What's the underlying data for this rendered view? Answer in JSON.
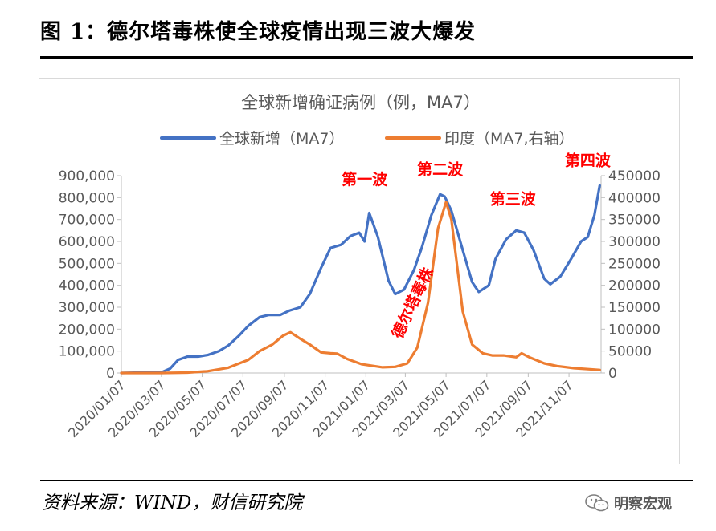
{
  "figure": {
    "title": "图 1：德尔塔毒株使全球疫情出现三波大爆发",
    "source": "资料来源：WIND，财信研究院",
    "watermark": "明察宏观"
  },
  "colors": {
    "left_series": "#4472C4",
    "right_series": "#ED7D31",
    "annotation": "#FF0000",
    "axis": "#595959"
  },
  "chart_data": {
    "type": "line",
    "title": "全球新增确证病例（例，MA7）",
    "x_tick_labels": [
      "2020/01/07",
      "2020/03/07",
      "2020/05/07",
      "2020/07/07",
      "2020/09/07",
      "2020/11/07",
      "2021/01/07",
      "2021/03/07",
      "2021/05/07",
      "2021/07/07",
      "2021/09/07",
      "2021/11/07"
    ],
    "y_left": {
      "min": 0,
      "max": 900000,
      "ticks": [
        "0",
        "100,000",
        "200,000",
        "300,000",
        "400,000",
        "500,000",
        "600,000",
        "700,000",
        "800,000",
        "900,000"
      ]
    },
    "y_right": {
      "min": 0,
      "max": 450000,
      "ticks": [
        "0",
        "50000",
        "100000",
        "150000",
        "200000",
        "250000",
        "300000",
        "350000",
        "400000",
        "450000"
      ]
    },
    "legend_position": "top",
    "grid": false,
    "series": [
      {
        "name": "全球新增（MA7）",
        "axis": "left",
        "color": "#4472C4",
        "points": [
          [
            "2020-01-07",
            0
          ],
          [
            "2020-02-01",
            2000
          ],
          [
            "2020-02-15",
            5000
          ],
          [
            "2020-03-07",
            3000
          ],
          [
            "2020-03-20",
            20000
          ],
          [
            "2020-04-01",
            60000
          ],
          [
            "2020-04-15",
            75000
          ],
          [
            "2020-05-01",
            75000
          ],
          [
            "2020-05-15",
            82000
          ],
          [
            "2020-06-01",
            100000
          ],
          [
            "2020-06-15",
            125000
          ],
          [
            "2020-07-01",
            170000
          ],
          [
            "2020-07-15",
            215000
          ],
          [
            "2020-08-01",
            255000
          ],
          [
            "2020-08-15",
            265000
          ],
          [
            "2020-09-01",
            265000
          ],
          [
            "2020-09-15",
            285000
          ],
          [
            "2020-10-01",
            300000
          ],
          [
            "2020-10-15",
            360000
          ],
          [
            "2020-11-01",
            480000
          ],
          [
            "2020-11-15",
            570000
          ],
          [
            "2020-12-01",
            585000
          ],
          [
            "2020-12-15",
            625000
          ],
          [
            "2020-12-28",
            640000
          ],
          [
            "2021-01-05",
            600000
          ],
          [
            "2021-01-12",
            730000
          ],
          [
            "2021-01-25",
            620000
          ],
          [
            "2021-02-10",
            420000
          ],
          [
            "2021-02-20",
            360000
          ],
          [
            "2021-03-05",
            380000
          ],
          [
            "2021-03-20",
            470000
          ],
          [
            "2021-04-01",
            575000
          ],
          [
            "2021-04-15",
            720000
          ],
          [
            "2021-04-28",
            815000
          ],
          [
            "2021-05-05",
            805000
          ],
          [
            "2021-05-15",
            740000
          ],
          [
            "2021-06-01",
            560000
          ],
          [
            "2021-06-15",
            415000
          ],
          [
            "2021-06-25",
            370000
          ],
          [
            "2021-07-10",
            400000
          ],
          [
            "2021-07-20",
            520000
          ],
          [
            "2021-08-05",
            610000
          ],
          [
            "2021-08-20",
            650000
          ],
          [
            "2021-09-01",
            640000
          ],
          [
            "2021-09-15",
            560000
          ],
          [
            "2021-10-01",
            430000
          ],
          [
            "2021-10-10",
            405000
          ],
          [
            "2021-10-25",
            440000
          ],
          [
            "2021-11-10",
            520000
          ],
          [
            "2021-11-25",
            600000
          ],
          [
            "2021-12-05",
            620000
          ],
          [
            "2021-12-15",
            720000
          ],
          [
            "2021-12-23",
            855000
          ]
        ]
      },
      {
        "name": "印度（MA7,右轴）",
        "axis": "right",
        "color": "#ED7D31",
        "points": [
          [
            "2020-01-07",
            0
          ],
          [
            "2020-03-07",
            0
          ],
          [
            "2020-04-15",
            1000
          ],
          [
            "2020-05-15",
            4000
          ],
          [
            "2020-06-15",
            12000
          ],
          [
            "2020-07-15",
            30000
          ],
          [
            "2020-08-01",
            50000
          ],
          [
            "2020-08-20",
            65000
          ],
          [
            "2020-09-05",
            85000
          ],
          [
            "2020-09-16",
            93000
          ],
          [
            "2020-10-01",
            78000
          ],
          [
            "2020-10-15",
            65000
          ],
          [
            "2020-11-01",
            47000
          ],
          [
            "2020-11-15",
            45000
          ],
          [
            "2020-11-25",
            44000
          ],
          [
            "2020-12-10",
            32000
          ],
          [
            "2021-01-01",
            20000
          ],
          [
            "2021-02-01",
            13000
          ],
          [
            "2021-02-20",
            14000
          ],
          [
            "2021-03-10",
            22000
          ],
          [
            "2021-03-25",
            58000
          ],
          [
            "2021-04-10",
            160000
          ],
          [
            "2021-04-25",
            330000
          ],
          [
            "2021-05-07",
            390000
          ],
          [
            "2021-05-15",
            350000
          ],
          [
            "2021-06-01",
            140000
          ],
          [
            "2021-06-15",
            65000
          ],
          [
            "2021-07-01",
            45000
          ],
          [
            "2021-07-15",
            40000
          ],
          [
            "2021-08-01",
            40000
          ],
          [
            "2021-08-20",
            36000
          ],
          [
            "2021-08-28",
            45000
          ],
          [
            "2021-09-10",
            35000
          ],
          [
            "2021-10-01",
            22000
          ],
          [
            "2021-10-20",
            16000
          ],
          [
            "2021-11-15",
            11000
          ],
          [
            "2021-12-23",
            7000
          ]
        ]
      }
    ],
    "annotations": [
      {
        "text": "第一波",
        "date": "2021-01-05",
        "value_left": 860000
      },
      {
        "text": "第二波",
        "date": "2021-04-28",
        "value_left": 905000
      },
      {
        "text": "第三波",
        "date": "2021-08-15",
        "value_left": 770000
      },
      {
        "text": "第四波",
        "date": "2021-12-05",
        "value_left": 945000
      },
      {
        "text": "德尔塔毒株",
        "date": "2021-03-25",
        "value_left": 310000,
        "rotated": true
      }
    ]
  }
}
